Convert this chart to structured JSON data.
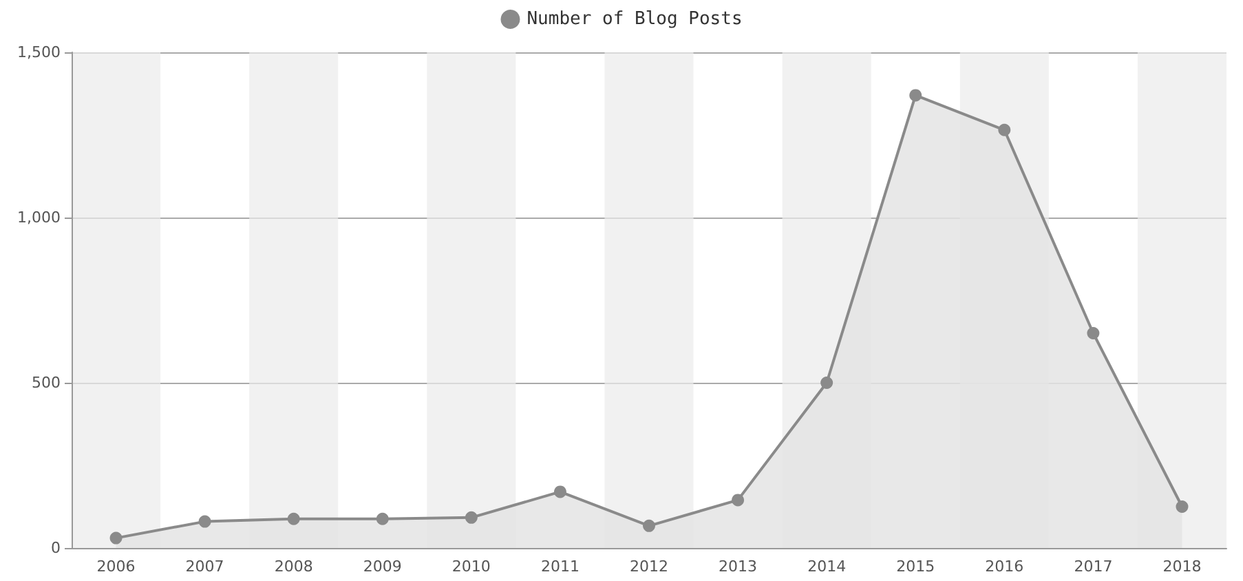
{
  "chart_data": {
    "type": "area",
    "categories": [
      "2006",
      "2007",
      "2008",
      "2009",
      "2010",
      "2011",
      "2012",
      "2013",
      "2014",
      "2015",
      "2016",
      "2017",
      "2018"
    ],
    "series": [
      {
        "name": "Number of Blog Posts",
        "color": "#8a8a8a",
        "values": [
          30,
          80,
          88,
          88,
          92,
          170,
          67,
          145,
          500,
          1370,
          1265,
          650,
          125
        ]
      }
    ],
    "ylim": [
      0,
      1500
    ],
    "yticks": [
      0,
      500,
      {
        "value": 1000,
        "label": "1,000"
      },
      {
        "value": 1500,
        "label": "1,500"
      }
    ],
    "grid": true,
    "legend": "top",
    "marker": "circle"
  }
}
